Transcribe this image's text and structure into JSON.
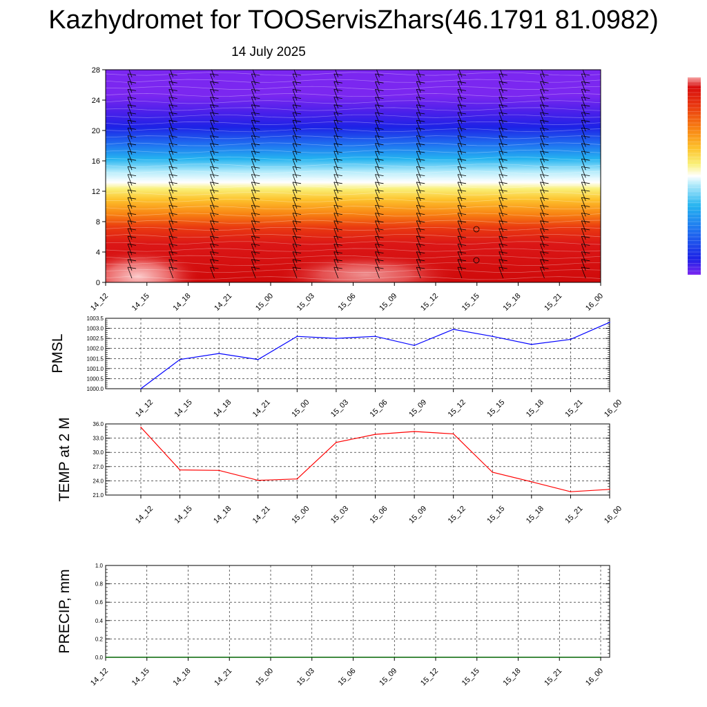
{
  "header": {
    "title": "Kazhydromet for TOOServisZhars(46.1791 81.0982)",
    "subtitle": "14 July 2025"
  },
  "chart_data": [
    {
      "type": "heatmap",
      "title": "",
      "xlabel": "",
      "ylabel": "",
      "x": [
        "14_12",
        "14_15",
        "14_18",
        "14_21",
        "15_00",
        "15_03",
        "15_06",
        "15_09",
        "15_12",
        "15_15",
        "15_18",
        "15_21",
        "16_00"
      ],
      "ylim": [
        0,
        28
      ],
      "yticks": [
        0,
        4,
        8,
        12,
        16,
        20,
        24,
        28
      ],
      "overlay": "wind barbs",
      "colorbar": [
        "#7b27f0",
        "#1d22e6",
        "#1f6ff0",
        "#25b4f0",
        "#b6ecfb",
        "#ffffff",
        "#f9f079",
        "#fdc32d",
        "#f88212",
        "#ea3b10",
        "#d80e0e",
        "#cf0a0a",
        "#f6a3a3"
      ]
    },
    {
      "type": "line",
      "ylabel": "PMSL",
      "x": [
        "14_12",
        "14_15",
        "14_18",
        "14_21",
        "15_00",
        "15_03",
        "15_06",
        "15_09",
        "15_12",
        "15_15",
        "15_18",
        "15_21",
        "16_00"
      ],
      "ylim": [
        1000.0,
        1003.5
      ],
      "yticks": [
        "1000.0",
        "1000.5",
        "1001.0",
        "1001.5",
        "1002.0",
        "1002.5",
        "1003.0",
        "1003.5"
      ],
      "color": "#0000ff",
      "values": [
        1000.0,
        1001.45,
        1001.75,
        1001.45,
        1002.6,
        1002.5,
        1002.6,
        1002.15,
        1002.95,
        1002.6,
        1002.2,
        1002.45,
        1003.3
      ],
      "grid": true
    },
    {
      "type": "line",
      "ylabel": "TEMP at 2 M",
      "x": [
        "14_12",
        "14_15",
        "14_18",
        "14_21",
        "15_00",
        "15_03",
        "15_06",
        "15_09",
        "15_12",
        "15_15",
        "15_18",
        "15_21",
        "16_00"
      ],
      "ylim": [
        21.0,
        36.0
      ],
      "yticks": [
        "21.0",
        "24.0",
        "27.0",
        "30.0",
        "33.0",
        "36.0"
      ],
      "color": "#ff0000",
      "values": [
        35.3,
        26.3,
        26.2,
        24.1,
        24.4,
        32.1,
        33.8,
        34.4,
        33.9,
        25.8,
        23.8,
        21.7,
        22.2
      ],
      "grid": true
    },
    {
      "type": "line",
      "ylabel": "PRECIP, mm",
      "x": [
        "14_12",
        "14_15",
        "14_18",
        "14_21",
        "15_00",
        "15_03",
        "15_06",
        "15_09",
        "15_12",
        "15_15",
        "15_18",
        "15_21",
        "16_00"
      ],
      "ylim": [
        0.0,
        1.0
      ],
      "yticks": [
        "0.0",
        "0.2",
        "0.4",
        "0.6",
        "0.8",
        "1.0"
      ],
      "color": "#006400",
      "values": [
        0,
        0,
        0,
        0,
        0,
        0,
        0,
        0,
        0,
        0,
        0,
        0,
        0
      ],
      "grid": true
    }
  ]
}
